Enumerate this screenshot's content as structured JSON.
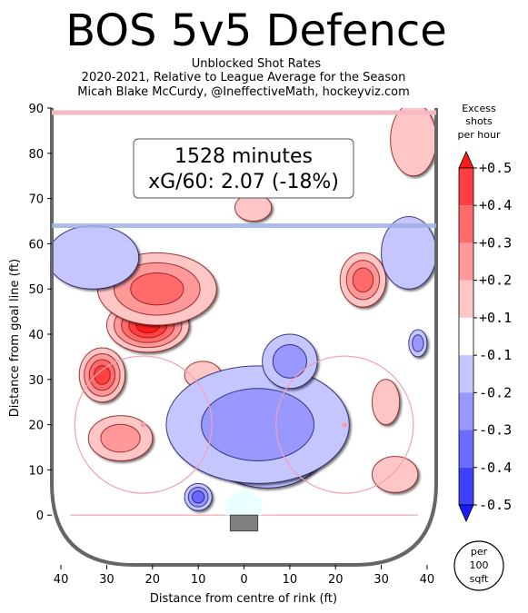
{
  "chart_data": {
    "type": "heatmap",
    "title": "BOS 5v5 Defence",
    "subtitle_lines": [
      "Unblocked Shot Rates",
      "2020-2021, Relative to League Average for the Season",
      "Micah Blake McCurdy, @IneffectiveMath, hockeyviz.com"
    ],
    "xlabel": "Distance from centre of rink (ft)",
    "ylabel": "Distance from goal line (ft)",
    "xlim": [
      -42,
      42
    ],
    "ylim": [
      -11,
      90
    ],
    "x_ticks": [
      -40,
      -30,
      -20,
      -10,
      0,
      10,
      20,
      30,
      40
    ],
    "x_tick_labels": [
      "40",
      "30",
      "20",
      "10",
      "0",
      "10",
      "20",
      "30",
      "40"
    ],
    "y_ticks": [
      0,
      10,
      20,
      30,
      40,
      50,
      60,
      70,
      80,
      90
    ],
    "y_tick_labels": [
      "0",
      "10",
      "20",
      "30",
      "40",
      "50",
      "60",
      "70",
      "80",
      "90"
    ],
    "annotation": {
      "line1": "1528 minutes",
      "line2": "xG/60: 2.07 (-18%)"
    },
    "colorbar": {
      "title_lines": [
        "Excess",
        "shots",
        "per hour"
      ],
      "tick_labels": [
        "+0.5",
        "+0.4",
        "+0.3",
        "+0.2",
        "+0.1",
        "-0.1",
        "-0.2",
        "-0.3",
        "-0.4",
        "-0.5"
      ],
      "levels": [
        0.5,
        0.4,
        0.3,
        0.2,
        0.1,
        -0.1,
        -0.2,
        -0.3,
        -0.4,
        -0.5
      ],
      "colors": [
        "#ff1a1a",
        "#ff3f3f",
        "#ff6b6b",
        "#ff9898",
        "#ffc6c6",
        "#ffffff",
        "#c6c6ff",
        "#9898ff",
        "#6b6bff",
        "#3f3fff",
        "#1a1aff"
      ],
      "unit_lines": [
        "per",
        "100",
        "sqft"
      ]
    },
    "regions": [
      {
        "sign": "pos",
        "cx": -21,
        "cy": 42,
        "rx": 9,
        "ry": 6,
        "level": 5
      },
      {
        "sign": "pos",
        "cx": -31,
        "cy": 31,
        "rx": 5,
        "ry": 6,
        "level": 4
      },
      {
        "sign": "pos",
        "cx": -19,
        "cy": 50,
        "rx": 13,
        "ry": 8,
        "level": 3
      },
      {
        "sign": "pos",
        "cx": 26,
        "cy": 52,
        "rx": 5,
        "ry": 6,
        "level": 3
      },
      {
        "sign": "pos",
        "cx": -27,
        "cy": 17,
        "rx": 7,
        "ry": 5,
        "level": 2
      },
      {
        "sign": "pos",
        "cx": 37,
        "cy": 83,
        "rx": 5,
        "ry": 8,
        "level": 1
      },
      {
        "sign": "pos",
        "cx": 2,
        "cy": 68,
        "rx": 4,
        "ry": 3,
        "level": 1
      },
      {
        "sign": "pos",
        "cx": 33,
        "cy": 9,
        "rx": 5,
        "ry": 4,
        "level": 1
      },
      {
        "sign": "pos",
        "cx": -9,
        "cy": 31,
        "rx": 4,
        "ry": 3,
        "level": 1
      },
      {
        "sign": "pos",
        "cx": 31,
        "cy": 25,
        "rx": 3,
        "ry": 5,
        "level": 1
      },
      {
        "sign": "neg",
        "cx": 5,
        "cy": 12,
        "rx": 8,
        "ry": 5,
        "level": 5
      },
      {
        "sign": "neg",
        "cx": 5,
        "cy": 14,
        "rx": 12,
        "ry": 8,
        "level": 4
      },
      {
        "sign": "neg",
        "cx": 3,
        "cy": 20,
        "rx": 20,
        "ry": 13,
        "level": 2
      },
      {
        "sign": "neg",
        "cx": -34,
        "cy": 56,
        "rx": 6,
        "ry": 4,
        "level": 3
      },
      {
        "sign": "neg",
        "cx": -33,
        "cy": 57,
        "rx": 10,
        "ry": 7,
        "level": 1
      },
      {
        "sign": "neg",
        "cx": 36,
        "cy": 58,
        "rx": 6,
        "ry": 8,
        "level": 1
      },
      {
        "sign": "neg",
        "cx": 38,
        "cy": 38,
        "rx": 2,
        "ry": 3,
        "level": 2
      },
      {
        "sign": "neg",
        "cx": -10,
        "cy": 4,
        "rx": 3,
        "ry": 3,
        "level": 3
      },
      {
        "sign": "neg",
        "cx": 10,
        "cy": 34,
        "rx": 6,
        "ry": 6,
        "level": 2
      }
    ]
  }
}
